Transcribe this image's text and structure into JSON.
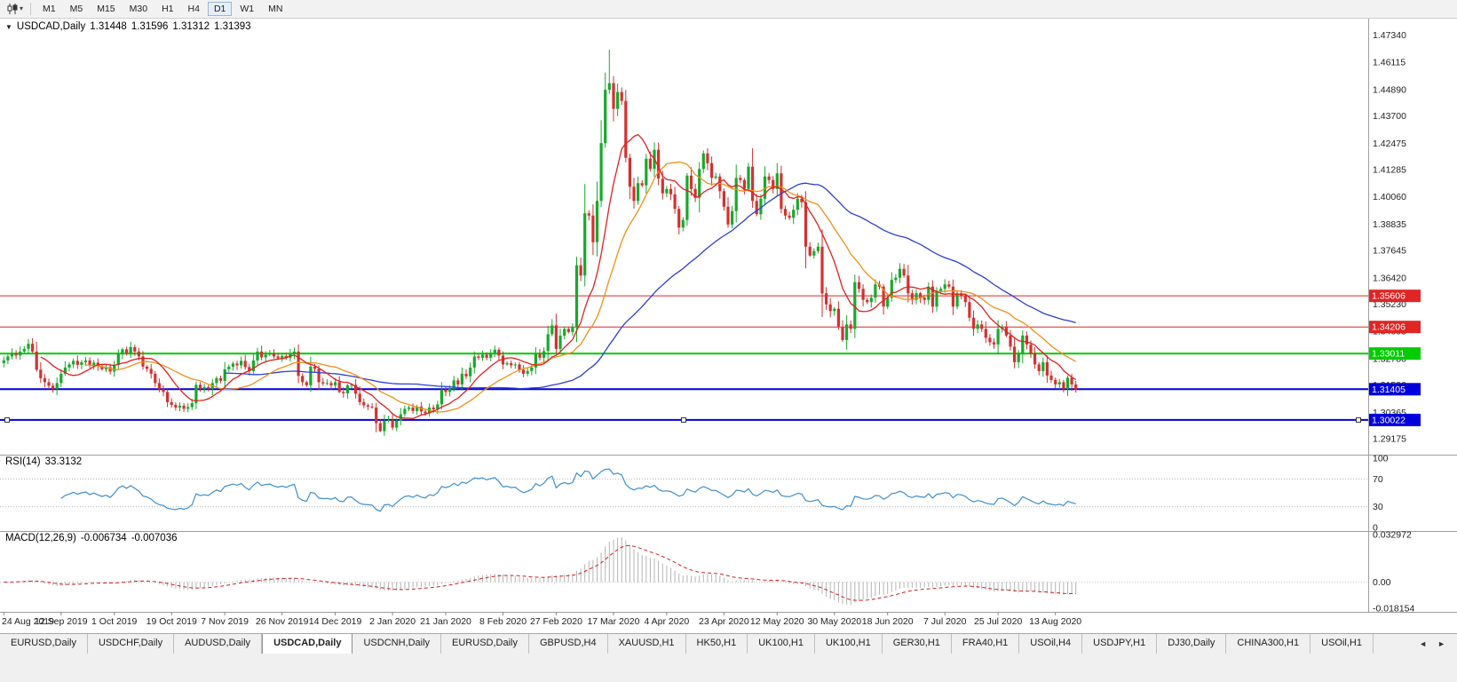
{
  "toolbar": {
    "timeframes": [
      "M1",
      "M5",
      "M15",
      "M30",
      "H1",
      "H4",
      "D1",
      "W1",
      "MN"
    ],
    "active_timeframe": "D1"
  },
  "icons": {
    "chart_type_caret": "▾",
    "one_click": "▼",
    "tab_scroll_left": "◄",
    "tab_scroll_right": "►"
  },
  "chart": {
    "header": {
      "symbol": "USDCAD,Daily",
      "open": "1.31448",
      "high": "1.31596",
      "low": "1.31312",
      "close": "1.31393"
    },
    "price_ticks": [
      "1.47340",
      "1.46115",
      "1.44890",
      "1.43700",
      "1.42475",
      "1.41285",
      "1.40060",
      "1.38835",
      "1.37645",
      "1.36420",
      "1.35230",
      "1.34005",
      "1.32780",
      "1.31590",
      "1.30365",
      "1.29175"
    ],
    "hlines": [
      {
        "label": "1.35606",
        "color": "#e02525",
        "width": 1,
        "selected": false
      },
      {
        "label": "1.34206",
        "color": "#e02525",
        "width": 1,
        "selected": false
      },
      {
        "label": "1.33011",
        "color": "#00cc00",
        "width": 2,
        "selected": false
      },
      {
        "label": "1.31405",
        "color": "#0000dd",
        "width": 2,
        "selected": false
      },
      {
        "label": "1.30022",
        "color": "#0000dd",
        "width": 2,
        "selected": true
      }
    ],
    "date_labels": [
      "24 Aug 2019",
      "12 Sep 2019",
      "1 Oct 2019",
      "19 Oct 2019",
      "7 Nov 2019",
      "26 Nov 2019",
      "14 Dec 2019",
      "2 Jan 2020",
      "21 Jan 2020",
      "8 Feb 2020",
      "27 Feb 2020",
      "17 Mar 2020",
      "4 Apr 2020",
      "23 Apr 2020",
      "12 May 2020",
      "30 May 2020",
      "18 Jun 2020",
      "7 Jul 2020",
      "25 Jul 2020",
      "13 Aug 2020"
    ]
  },
  "rsi": {
    "name": "RSI(14)",
    "value": "33.3132",
    "levels": [
      "100",
      "70",
      "30",
      "0"
    ],
    "line_color": "#3f8fce"
  },
  "macd": {
    "name": "MACD(12,26,9)",
    "value_main": "-0.006734",
    "value_signal": "-0.007036",
    "axis": [
      "0.032972",
      "0.00",
      "-0.018154"
    ],
    "histogram_color": "#b4b4b4",
    "signal_color": "#cc2222"
  },
  "chart_data": {
    "type": "candlestick",
    "symbol": "USDCAD",
    "period": "Daily",
    "x_start": "24 Aug 2019",
    "x_end": "26 Aug 2020",
    "first_open": 1.3258,
    "closes": [
      1.327,
      1.3288,
      1.3302,
      1.3292,
      1.331,
      1.3322,
      1.3345,
      1.331,
      1.3228,
      1.319,
      1.3172,
      1.3156,
      1.3142,
      1.3168,
      1.321,
      1.3238,
      1.3252,
      1.3268,
      1.325,
      1.3262,
      1.327,
      1.3248,
      1.326,
      1.3244,
      1.323,
      1.324,
      1.322,
      1.325,
      1.3298,
      1.332,
      1.3302,
      1.333,
      1.331,
      1.3288,
      1.3242,
      1.3232,
      1.321,
      1.3168,
      1.314,
      1.3128,
      1.3082,
      1.307,
      1.3058,
      1.3066,
      1.3052,
      1.306,
      1.3078,
      1.316,
      1.3142,
      1.315,
      1.3142,
      1.3168,
      1.319,
      1.3178,
      1.323,
      1.3242,
      1.3256,
      1.3248,
      1.3268,
      1.324,
      1.3222,
      1.327,
      1.331,
      1.3284,
      1.3296,
      1.3302,
      1.3288,
      1.328,
      1.329,
      1.3282,
      1.3298,
      1.331,
      1.32,
      1.3172,
      1.3158,
      1.3242,
      1.3232,
      1.3172,
      1.3166,
      1.3168,
      1.3158,
      1.3172,
      1.3128,
      1.3122,
      1.3158,
      1.316,
      1.312,
      1.3082,
      1.3068,
      1.3062,
      1.3058,
      1.2988,
      1.2952,
      1.2998,
      1.3002,
      1.2968,
      1.2998,
      1.3028,
      1.3052,
      1.3058,
      1.3042,
      1.3062,
      1.304,
      1.3032,
      1.3058,
      1.305,
      1.3072,
      1.3138,
      1.3128,
      1.3142,
      1.318,
      1.3162,
      1.321,
      1.3198,
      1.3238,
      1.3288,
      1.3282,
      1.3296,
      1.3282,
      1.3302,
      1.3318,
      1.3292,
      1.3252,
      1.3258,
      1.3248,
      1.3252,
      1.3228,
      1.321,
      1.3222,
      1.3238,
      1.3298,
      1.3282,
      1.3312,
      1.3388,
      1.3428,
      1.3322,
      1.3382,
      1.3412,
      1.3398,
      1.3422,
      1.3698,
      1.3652,
      1.3932,
      1.3922,
      1.3802,
      1.3988,
      1.4248,
      1.4488,
      1.4518,
      1.4402,
      1.4478,
      1.4438,
      1.4182,
      1.4052,
      1.3988,
      1.4068,
      1.4058,
      1.4178,
      1.4132,
      1.4218,
      1.4088,
      1.4022,
      1.4042,
      1.4018,
      1.3952,
      1.3868,
      1.3902,
      1.4102,
      1.4042,
      1.4002,
      1.4132,
      1.4202,
      1.4158,
      1.4092,
      1.4098,
      1.4032,
      1.3962,
      1.3882,
      1.3942,
      1.4092,
      1.4082,
      1.4042,
      1.4142,
      1.3988,
      1.3928,
      1.3998,
      1.4098,
      1.4082,
      1.4042,
      1.4112,
      1.3952,
      1.3922,
      1.3912,
      1.3948,
      1.3998,
      1.3982,
      1.3782,
      1.3742,
      1.3762,
      1.3782,
      1.3572,
      1.3522,
      1.3492,
      1.3502,
      1.3422,
      1.3362,
      1.3432,
      1.3412,
      1.3622,
      1.3592,
      1.3542,
      1.3532,
      1.3552,
      1.3612,
      1.3602,
      1.3512,
      1.3552,
      1.3632,
      1.3642,
      1.3682,
      1.3652,
      1.3572,
      1.3542,
      1.3572,
      1.3552,
      1.3542,
      1.3602,
      1.3512,
      1.3582,
      1.3592,
      1.3612,
      1.3602,
      1.3512,
      1.3572,
      1.3562,
      1.3532,
      1.3462,
      1.3412,
      1.3432,
      1.3412,
      1.3372,
      1.3352,
      1.3342,
      1.3412,
      1.3422,
      1.3382,
      1.3332,
      1.3262,
      1.3302,
      1.3382,
      1.3342,
      1.3302,
      1.3252,
      1.3222,
      1.3262,
      1.3202,
      1.3182,
      1.3162,
      1.3172,
      1.3142,
      1.3192,
      1.3162,
      1.31393
    ],
    "wick_overrides": {
      "92": {
        "low": 1.2948
      },
      "147": {
        "high": 1.4565
      },
      "148": {
        "high": 1.4668
      }
    },
    "moving_averages": [
      {
        "period": 10,
        "color": "#e02020"
      },
      {
        "period": 21,
        "color": "#f09018"
      },
      {
        "period": 55,
        "color": "#2b3fd6"
      }
    ],
    "up_color": "#17a92c",
    "down_color": "#d53030",
    "indicators": {
      "rsi_period": 14,
      "macd": [
        12,
        26,
        9
      ]
    }
  },
  "tabs": {
    "items": [
      "EURUSD,Daily",
      "USDCHF,Daily",
      "AUDUSD,Daily",
      "USDCAD,Daily",
      "USDCNH,Daily",
      "EURUSD,Daily",
      "GBPUSD,H4",
      "XAUUSD,H1",
      "HK50,H1",
      "UK100,H1",
      "UK100,H1",
      "GER30,H1",
      "FRA40,H1",
      "USOil,H4",
      "USDJPY,H1",
      "DJ30,Daily",
      "CHINA300,H1",
      "USOil,H1"
    ],
    "active_index": 3
  }
}
